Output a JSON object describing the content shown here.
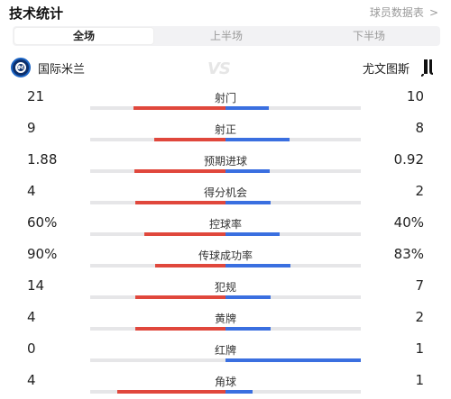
{
  "header": {
    "title": "技术统计",
    "report_link": "球员数据表",
    "report_chevron": ">"
  },
  "tabs": [
    {
      "label": "全场",
      "active": true
    },
    {
      "label": "上半场",
      "active": false
    },
    {
      "label": "下半场",
      "active": false
    }
  ],
  "teams": {
    "home": {
      "name": "国际米兰",
      "logo_icon": "inter-milan-logo-icon"
    },
    "away": {
      "name": "尤文图斯",
      "logo_icon": "juventus-logo-icon"
    },
    "vs_text": "VS"
  },
  "colors": {
    "home": "#e0473c",
    "away": "#3a6fe0",
    "track": "#e6e6e8"
  },
  "stats": [
    {
      "label": "射门",
      "home": "21",
      "away": "10",
      "home_value": 21,
      "away_value": 10
    },
    {
      "label": "射正",
      "home": "9",
      "away": "8",
      "home_value": 9,
      "away_value": 8
    },
    {
      "label": "预期进球",
      "home": "1.88",
      "away": "0.92",
      "home_value": 1.88,
      "away_value": 0.92
    },
    {
      "label": "得分机会",
      "home": "4",
      "away": "2",
      "home_value": 4,
      "away_value": 2
    },
    {
      "label": "控球率",
      "home": "60%",
      "away": "40%",
      "home_value": 60,
      "away_value": 40
    },
    {
      "label": "传球成功率",
      "home": "90%",
      "away": "83%",
      "home_value": 90,
      "away_value": 83
    },
    {
      "label": "犯规",
      "home": "14",
      "away": "7",
      "home_value": 14,
      "away_value": 7
    },
    {
      "label": "黄牌",
      "home": "4",
      "away": "2",
      "home_value": 4,
      "away_value": 2
    },
    {
      "label": "红牌",
      "home": "0",
      "away": "1",
      "home_value": 0,
      "away_value": 1
    },
    {
      "label": "角球",
      "home": "4",
      "away": "1",
      "home_value": 4,
      "away_value": 1
    }
  ]
}
